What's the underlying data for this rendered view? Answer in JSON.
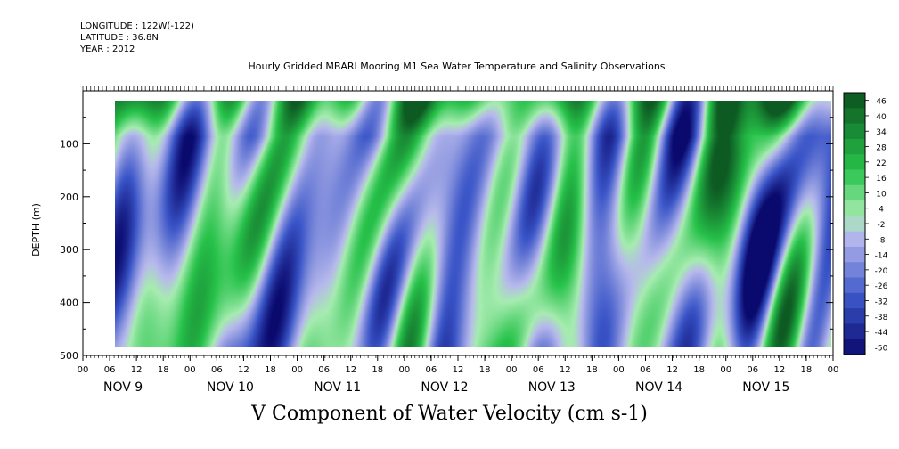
{
  "header": {
    "longitude": "LONGITUDE : 122W(-122)",
    "latitude": "LATITUDE : 36.8N",
    "year": "YEAR : 2012"
  },
  "chart_data": {
    "type": "heatmap",
    "title": "Hourly Gridded MBARI Mooring M1 Sea Water Temperature and Salinity Observations",
    "xlabel": "V Component of Water Velocity (cm s-1)",
    "ylabel": "DEPTH (m)",
    "ylim": [
      500,
      0
    ],
    "y_ticks": [
      100,
      200,
      300,
      400,
      500
    ],
    "y_tick_labels": [
      "100",
      "200",
      "300",
      "400",
      "500"
    ],
    "hour_labels": [
      "00",
      "06",
      "12",
      "18",
      "00",
      "06",
      "12",
      "18",
      "00",
      "06",
      "12",
      "18",
      "00",
      "06",
      "12",
      "18",
      "00",
      "06",
      "12",
      "18",
      "00",
      "06",
      "12",
      "18",
      "00",
      "06",
      "12",
      "18",
      "00"
    ],
    "day_labels": [
      "NOV  9",
      "NOV 10",
      "NOV 11",
      "NOV 12",
      "NOV 13",
      "NOV 14",
      "NOV 15"
    ],
    "days": 7,
    "colorbar": {
      "levels": [
        46,
        40,
        34,
        28,
        22,
        16,
        10,
        4,
        -2,
        -8,
        -14,
        -20,
        -26,
        -32,
        -38,
        -44,
        -50
      ],
      "min": -50,
      "max": 50
    },
    "colors": {
      "strong_negative": "#0a0a6e",
      "negative": "#3a55c8",
      "weak_negative": "#b7b9ec",
      "weak_positive": "#a6ecb0",
      "positive": "#27c24a",
      "strong_positive": "#0d5a22"
    }
  }
}
